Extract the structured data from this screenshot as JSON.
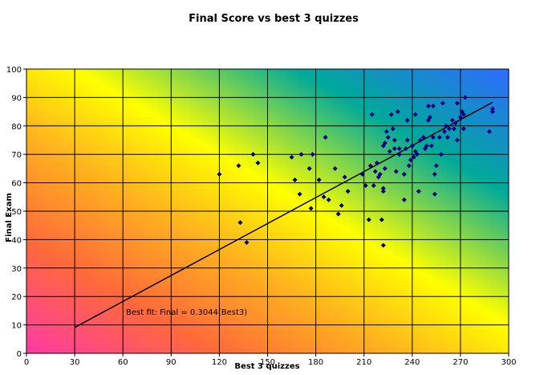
{
  "chart_data": {
    "type": "scatter",
    "title": "Final Score vs best 3 quizzes",
    "xlabel": "Best 3 quizzes",
    "ylabel": "Final Exam",
    "xlim": [
      0,
      300
    ],
    "ylim": [
      0,
      100
    ],
    "xticks": [
      "0",
      "30",
      "60",
      "90",
      "120",
      "150",
      "180",
      "210",
      "240",
      "270",
      "300"
    ],
    "yticks": [
      "0",
      "10",
      "20",
      "30",
      "40",
      "50",
      "60",
      "70",
      "80",
      "90",
      "100"
    ],
    "grid": true,
    "point_color": "#000080",
    "trendline": {
      "x": [
        30,
        290
      ],
      "y": [
        9.1,
        88.3
      ],
      "color": "#000000"
    },
    "annotation": "Best fit: Final = 0.3044(Best3)",
    "series": [
      {
        "points": [
          [
            120,
            63
          ],
          [
            132,
            66
          ],
          [
            133,
            46
          ],
          [
            137,
            39
          ],
          [
            141,
            70
          ],
          [
            144,
            67
          ],
          [
            165,
            69
          ],
          [
            167,
            61
          ],
          [
            170,
            56
          ],
          [
            171,
            70
          ],
          [
            176,
            65
          ],
          [
            177,
            51
          ],
          [
            178,
            70
          ],
          [
            182,
            61
          ],
          [
            185,
            55
          ],
          [
            186,
            76
          ],
          [
            188,
            54
          ],
          [
            192,
            65
          ],
          [
            194,
            49
          ],
          [
            196,
            52
          ],
          [
            198,
            62
          ],
          [
            200,
            57
          ],
          [
            209,
            63
          ],
          [
            211,
            59
          ],
          [
            213,
            47
          ],
          [
            214,
            66
          ],
          [
            215,
            84
          ],
          [
            216,
            59
          ],
          [
            217,
            64
          ],
          [
            218,
            67
          ],
          [
            219,
            62
          ],
          [
            220,
            63
          ],
          [
            221,
            47
          ],
          [
            222,
            73
          ],
          [
            222,
            58
          ],
          [
            222,
            57
          ],
          [
            222,
            38
          ],
          [
            223,
            74
          ],
          [
            223,
            65
          ],
          [
            224,
            78
          ],
          [
            225,
            76
          ],
          [
            226,
            71
          ],
          [
            227,
            84
          ],
          [
            228,
            79
          ],
          [
            229,
            75
          ],
          [
            229,
            72
          ],
          [
            230,
            64
          ],
          [
            231,
            85
          ],
          [
            232,
            72
          ],
          [
            232,
            70
          ],
          [
            235,
            63
          ],
          [
            235,
            54
          ],
          [
            236,
            72
          ],
          [
            237,
            75
          ],
          [
            237,
            82
          ],
          [
            238,
            66
          ],
          [
            239,
            68
          ],
          [
            240,
            73
          ],
          [
            241,
            69
          ],
          [
            242,
            84
          ],
          [
            242,
            71
          ],
          [
            243,
            70
          ],
          [
            244,
            57
          ],
          [
            245,
            75
          ],
          [
            247,
            76
          ],
          [
            248,
            72
          ],
          [
            249,
            73
          ],
          [
            250,
            82
          ],
          [
            250,
            87
          ],
          [
            251,
            83
          ],
          [
            252,
            73
          ],
          [
            253,
            87
          ],
          [
            253,
            76
          ],
          [
            254,
            63
          ],
          [
            254,
            56
          ],
          [
            255,
            66
          ],
          [
            257,
            76
          ],
          [
            258,
            70
          ],
          [
            259,
            88
          ],
          [
            260,
            78
          ],
          [
            261,
            80
          ],
          [
            262,
            76
          ],
          [
            263,
            79
          ],
          [
            265,
            82
          ],
          [
            266,
            79
          ],
          [
            267,
            81
          ],
          [
            268,
            88
          ],
          [
            268,
            75
          ],
          [
            270,
            83
          ],
          [
            271,
            85
          ],
          [
            272,
            84
          ],
          [
            272,
            79
          ],
          [
            273,
            90
          ],
          [
            288,
            78
          ],
          [
            290,
            86
          ],
          [
            290,
            85
          ]
        ]
      }
    ]
  }
}
